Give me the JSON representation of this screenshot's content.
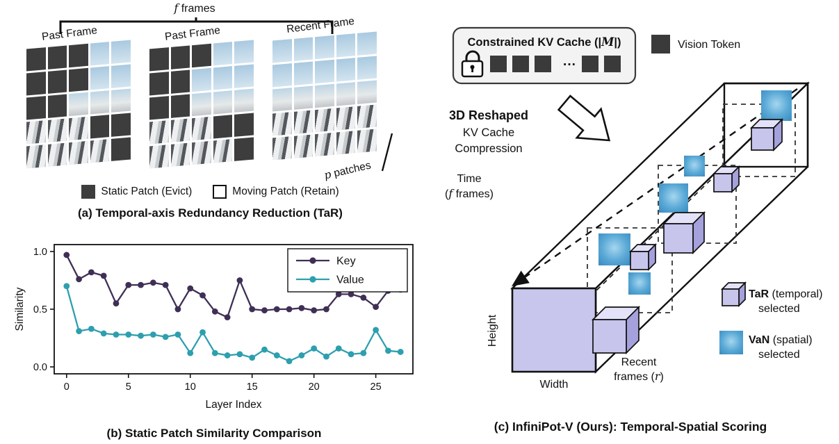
{
  "panel_a": {
    "caption": "(a) Temporal-axis Redundancy Reduction (TaR)",
    "frames_bracket": {
      "var": "f",
      "rest": " frames"
    },
    "patches": {
      "var": "p",
      "rest": " patches"
    },
    "frames": [
      {
        "label": "Past Frame",
        "pattern": [
          "sssmm",
          "sssmm",
          "ssmmm",
          "mmmss",
          "mmmms"
        ]
      },
      {
        "label": "Past Frame",
        "pattern": [
          "sssmm",
          "ssmmm",
          "ssmmm",
          "mmmss",
          "mmmms"
        ]
      },
      {
        "label": "Recent Frame",
        "pattern": [
          "mmmmm",
          "mmmmm",
          "mmmmm",
          "mmmmm",
          "mmmmm"
        ]
      }
    ],
    "legend": [
      {
        "type": "static",
        "label": "Static Patch (Evict)"
      },
      {
        "type": "moving",
        "label": "Moving Patch (Retain)"
      }
    ]
  },
  "panel_b": {
    "caption": "(b) Static Patch Similarity Comparison"
  },
  "chart_data": {
    "type": "line",
    "title": "",
    "xlabel": "Layer Index",
    "ylabel": "Similarity",
    "x": [
      0,
      1,
      2,
      3,
      4,
      5,
      6,
      7,
      8,
      9,
      10,
      11,
      12,
      13,
      14,
      15,
      16,
      17,
      18,
      19,
      20,
      21,
      22,
      23,
      24,
      25,
      26,
      27
    ],
    "series": [
      {
        "name": "Key",
        "color": "#3f2f55",
        "values": [
          0.97,
          0.76,
          0.82,
          0.79,
          0.55,
          0.71,
          0.71,
          0.73,
          0.71,
          0.5,
          0.68,
          0.62,
          0.48,
          0.43,
          0.75,
          0.5,
          0.49,
          0.5,
          0.5,
          0.51,
          0.49,
          0.5,
          0.63,
          0.63,
          0.6,
          0.52,
          0.66,
          0.67
        ]
      },
      {
        "name": "Value",
        "color": "#2d9fae",
        "values": [
          0.7,
          0.31,
          0.33,
          0.29,
          0.28,
          0.28,
          0.27,
          0.28,
          0.26,
          0.28,
          0.12,
          0.3,
          0.12,
          0.1,
          0.11,
          0.08,
          0.15,
          0.1,
          0.05,
          0.1,
          0.16,
          0.09,
          0.16,
          0.11,
          0.12,
          0.32,
          0.14,
          0.13
        ]
      }
    ],
    "xlim": [
      -1,
      28
    ],
    "ylim": [
      -0.06,
      1.06
    ],
    "xticks": [
      0,
      5,
      10,
      15,
      20,
      25
    ],
    "yticks": [
      0.0,
      0.5,
      1.0
    ],
    "legend_position": "upper right",
    "grid": false
  },
  "panel_c": {
    "caption": "(c) InfiniPot-V (Ours): Temporal-Spatial Scoring",
    "kv_box": {
      "title_pre": "Constrained KV Cache (|",
      "title_var": "M",
      "title_post": "|)",
      "ellipsis": "···"
    },
    "vision_token": "Vision Token",
    "reshape": {
      "line1": "3D Reshaped",
      "line2": "KV Cache",
      "line3": "Compression"
    },
    "axes": {
      "time": "Time",
      "time_pre": "(",
      "time_var": "f",
      "time_post": " frames)",
      "height": "Height",
      "width": "Width",
      "recent_line1": "Recent",
      "recent_pre": "frames (",
      "recent_var": "r",
      "recent_post": ")"
    },
    "legend": [
      {
        "bold": "TaR",
        "rest": " (temporal)",
        "line2": "selected"
      },
      {
        "bold": "VaN",
        "rest": " (spatial)",
        "line2": "selected"
      }
    ]
  }
}
